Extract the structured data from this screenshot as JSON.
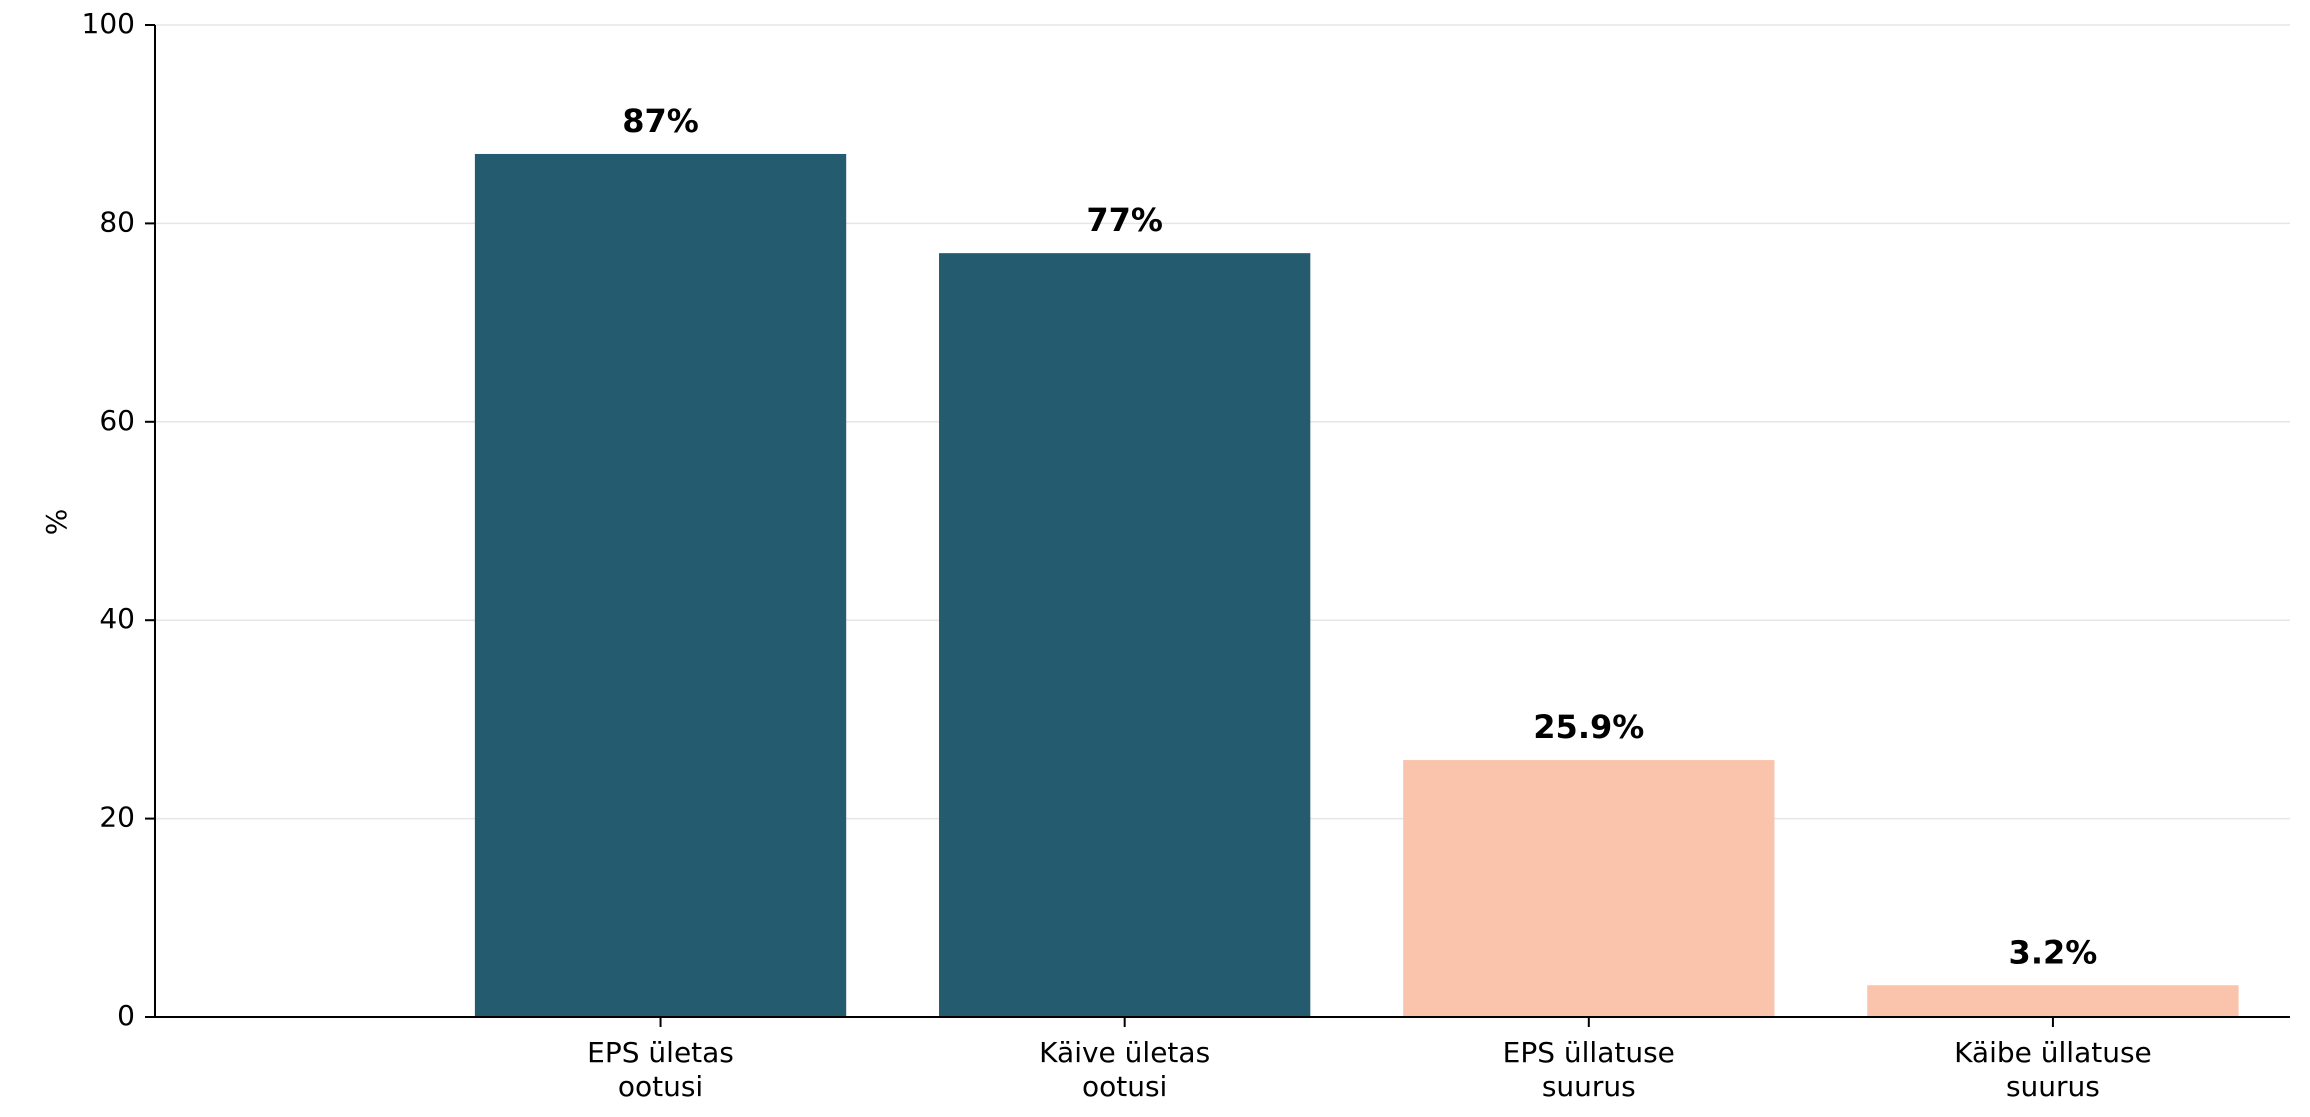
{
  "chart_data": {
    "type": "bar",
    "categories": [
      [
        "EPS ületas",
        "ootusi"
      ],
      [
        "Käive ületas",
        "ootusi"
      ],
      [
        "EPS üllatuse",
        "suurus"
      ],
      [
        "Käibe üllatuse",
        "suurus"
      ]
    ],
    "values": [
      87,
      77,
      25.9,
      3.2
    ],
    "value_labels": [
      "87%",
      "77%",
      "25.9%",
      "3.2%"
    ],
    "bar_colors": [
      "#255b6e",
      "#255b6e",
      "#f9c4ab",
      "#f9c4ab"
    ],
    "ylabel": "%",
    "xlabel": "",
    "title": "",
    "ylim": [
      0,
      100
    ],
    "yticks": [
      0,
      20,
      40,
      60,
      80,
      100
    ],
    "grid": "horizontal",
    "axis_color": "#000000",
    "grid_color": "#e6e6e6"
  }
}
